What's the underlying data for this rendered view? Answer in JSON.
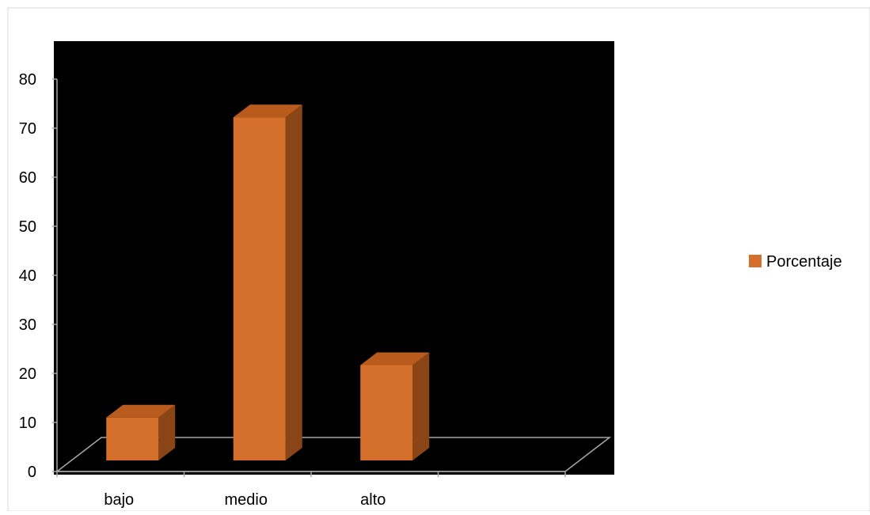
{
  "chart_data": {
    "type": "bar",
    "categories": [
      "bajo",
      "medio",
      "alto",
      ""
    ],
    "series": [
      {
        "name": "Porcentaje",
        "values": [
          9,
          72,
          20,
          null
        ]
      }
    ],
    "yticks": [
      "0",
      "10",
      "20",
      "30",
      "40",
      "50",
      "60",
      "70",
      "80"
    ],
    "ylim": [
      0,
      80
    ],
    "grid": false,
    "legend_position": "right",
    "three_d": true,
    "plot_background": "#000000",
    "bar_colors": {
      "front": "#D4702B",
      "top": "#B85B1C",
      "side": "#8A4517"
    },
    "axis_color": "#A6A6A6"
  }
}
